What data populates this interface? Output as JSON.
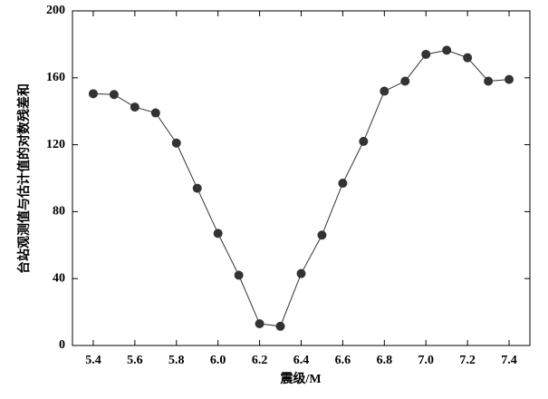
{
  "chart_data": {
    "type": "line",
    "x_label": "震级/M",
    "y_label": "台站观测值与估计值的对数残差和",
    "x": [
      5.4,
      5.5,
      5.6,
      5.7,
      5.8,
      5.9,
      6.0,
      6.1,
      6.2,
      6.3,
      6.4,
      6.5,
      6.6,
      6.7,
      6.8,
      6.9,
      7.0,
      7.1,
      7.2,
      7.3,
      7.4
    ],
    "values": [
      150.5,
      150,
      142.5,
      139,
      121,
      94,
      67,
      42,
      13,
      11.5,
      43,
      66,
      97,
      122,
      152,
      158,
      174,
      176.5,
      172,
      158,
      159
    ],
    "color": "#333333",
    "xlim": [
      5.3,
      7.5
    ],
    "xticks": [
      5.4,
      5.6,
      5.8,
      {
        "value": 6,
        "label": "6.0"
      },
      6.2,
      6.4,
      6.6,
      6.8,
      {
        "value": 7,
        "label": "7.0"
      },
      7.2,
      7.4
    ],
    "ylim": [
      0,
      200
    ],
    "yticks": [
      0,
      40,
      80,
      120,
      160,
      200
    ]
  }
}
